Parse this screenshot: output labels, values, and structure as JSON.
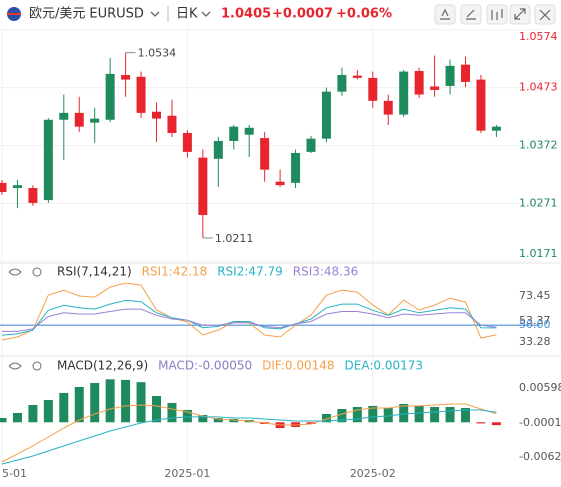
{
  "header": {
    "symbol": "欧元/美元",
    "code": "EURUSD",
    "period": "日K",
    "price": "1.0405",
    "change": "+0.0007",
    "change_pct": "+0.06%"
  },
  "chart_data": [
    {
      "type": "candlestick",
      "categories": [
        "5-01",
        null,
        null,
        null,
        null,
        null,
        null,
        null,
        null,
        null,
        null,
        null,
        "2025-01",
        null,
        null,
        null,
        null,
        null,
        null,
        null,
        null,
        null,
        null,
        null,
        "2025-02",
        null,
        null,
        null,
        null,
        null,
        null,
        null,
        null
      ],
      "open": [
        1.0307,
        1.0298,
        1.0298,
        1.0277,
        1.0417,
        1.0429,
        1.0412,
        1.0417,
        1.0495,
        1.0492,
        1.0431,
        1.0424,
        1.0394,
        1.0351,
        1.0349,
        1.038,
        1.0391,
        1.0385,
        1.0309,
        1.0307,
        1.0361,
        1.0384,
        1.0466,
        1.0494,
        1.049,
        1.045,
        1.0426,
        1.0502,
        1.0475,
        1.0476,
        1.0513,
        1.0487,
        1.0398
      ],
      "high": [
        1.0312,
        1.0312,
        1.0303,
        1.042,
        1.0461,
        1.0457,
        1.0438,
        1.0525,
        1.0534,
        1.0501,
        1.0447,
        1.0452,
        1.0399,
        1.0365,
        1.0387,
        1.0408,
        1.0408,
        1.0396,
        1.033,
        1.0365,
        1.0389,
        1.0473,
        1.0508,
        1.0504,
        1.0501,
        1.0461,
        1.0504,
        1.0508,
        1.0529,
        1.0522,
        1.0527,
        1.0495,
        1.0408
      ],
      "low": [
        1.0286,
        1.0263,
        1.0267,
        1.0272,
        1.0347,
        1.0396,
        1.0377,
        1.0413,
        1.0457,
        1.042,
        1.0378,
        1.0387,
        1.0351,
        1.0211,
        1.03,
        1.0365,
        1.0352,
        1.0309,
        1.03,
        1.0298,
        1.0359,
        1.0378,
        1.0459,
        1.0487,
        1.0438,
        1.0408,
        1.0422,
        1.0455,
        1.0457,
        1.0461,
        1.0474,
        1.0394,
        1.0387
      ],
      "close": [
        1.0291,
        1.0303,
        1.0272,
        1.0417,
        1.0429,
        1.0405,
        1.0419,
        1.0497,
        1.0487,
        1.0429,
        1.0419,
        1.0394,
        1.0361,
        1.0251,
        1.038,
        1.0405,
        1.0403,
        1.033,
        1.0303,
        1.0359,
        1.0384,
        1.0466,
        1.0495,
        1.049,
        1.045,
        1.0426,
        1.0501,
        1.0461,
        1.0469,
        1.0511,
        1.0483,
        1.0398,
        1.0405
      ],
      "up_color": "#1e8a5e",
      "down_color": "#e8252e",
      "ylim": [
        1.0169,
        1.0577
      ],
      "yticks": [
        1.0574,
        1.0473,
        1.0372,
        1.0271,
        1.0171
      ],
      "grid": true
    },
    {
      "type": "line",
      "title": "RSI(7,14,21)",
      "series": [
        {
          "name": "RSI1",
          "label": "RSI1:42.18",
          "color": "#f5a04a",
          "values": [
            38.1,
            40.5,
            46.1,
            74.2,
            78.3,
            73.5,
            72.6,
            80.7,
            83.9,
            82.3,
            62.2,
            55.8,
            52.6,
            42.1,
            46.1,
            52.6,
            51.8,
            42.1,
            40.5,
            50.1,
            58.2,
            74.2,
            78.3,
            76.7,
            66.2,
            58.2,
            70.2,
            62.2,
            66.2,
            71.8,
            68.6,
            39.7,
            42.18
          ]
        },
        {
          "name": "RSI2",
          "label": "RSI2:47.79",
          "color": "#27b3c4",
          "values": [
            42,
            43,
            46,
            62,
            66,
            64,
            63,
            67,
            70,
            69,
            60,
            56,
            54,
            48,
            49,
            53,
            53,
            48,
            47,
            51,
            55,
            64,
            67,
            67,
            62,
            58,
            63,
            60,
            62,
            64,
            63,
            48,
            47.79
          ]
        },
        {
          "name": "RSI3",
          "label": "RSI3:48.36",
          "color": "#9b80d8",
          "values": [
            45,
            45,
            47,
            57,
            60,
            59,
            59,
            61,
            63,
            63,
            58,
            55,
            54,
            50,
            50,
            52,
            52,
            49,
            48,
            51,
            53,
            59,
            61,
            61,
            59,
            56,
            59,
            58,
            59,
            60,
            60,
            50,
            48.36
          ]
        }
      ],
      "ylim": [
        30,
        84
      ],
      "yticks": [
        73.45,
        53.37,
        {
          "value": 50,
          "label": "50.00",
          "color": "#4a90d9"
        },
        33.28
      ]
    },
    {
      "type": "macd",
      "title": "MACD(12,26,9)",
      "histogram": {
        "name": "MACD",
        "label": "MACD:-0.00050",
        "color": "#8e7cc3",
        "up_color": "#1e8a5e",
        "down_color": "#e8252e",
        "values": [
          0.00075,
          0.00162,
          0.00302,
          0.00389,
          0.00512,
          0.00616,
          0.00686,
          0.0075,
          0.0074,
          0.007,
          0.00459,
          0.00337,
          0.00215,
          0.00127,
          0.00075,
          0.00058,
          0.0004,
          -0.0003,
          -0.001,
          -0.00082,
          -0.0003,
          0.00145,
          0.00232,
          0.00267,
          0.00285,
          0.0025,
          0.00319,
          0.00285,
          0.00267,
          0.00267,
          0.0025,
          -0.0002,
          -0.0005
        ]
      },
      "series": [
        {
          "name": "DIF",
          "label": "DIF:0.00148",
          "color": "#f5a04a",
          "values": [
            -0.00693,
            -0.00553,
            -0.00413,
            -0.00257,
            -0.001,
            0.0004,
            0.00145,
            0.00232,
            0.00285,
            0.00302,
            0.00285,
            0.00232,
            0.0018,
            0.0011,
            0.00058,
            0.0004,
            0.00023,
            -0.00012,
            -0.00047,
            -0.00047,
            -0.0003,
            0.00058,
            0.00145,
            0.00215,
            0.0025,
            0.0025,
            0.00285,
            0.00285,
            0.00302,
            0.00319,
            0.00319,
            0.00232,
            0.00148
          ]
        },
        {
          "name": "DEA",
          "label": "DEA:0.00173",
          "color": "#27b3c4",
          "values": [
            -0.00728,
            -0.00658,
            -0.00588,
            -0.00501,
            -0.00413,
            -0.00326,
            -0.00239,
            -0.00152,
            -0.00082,
            -0.00012,
            0.0004,
            0.00075,
            0.00093,
            0.00093,
            0.00093,
            0.00075,
            0.00075,
            0.00058,
            0.0004,
            0.00023,
            0.00023,
            0.00023,
            0.0004,
            0.00058,
            0.00093,
            0.0011,
            0.00145,
            0.00162,
            0.0018,
            0.00197,
            0.00215,
            0.00215,
            0.00173
          ]
        }
      ],
      "ylim": [
        -0.00746,
        0.00773
      ],
      "yticks": [
        0.00598,
        -0.00013,
        -0.00624
      ]
    }
  ]
}
